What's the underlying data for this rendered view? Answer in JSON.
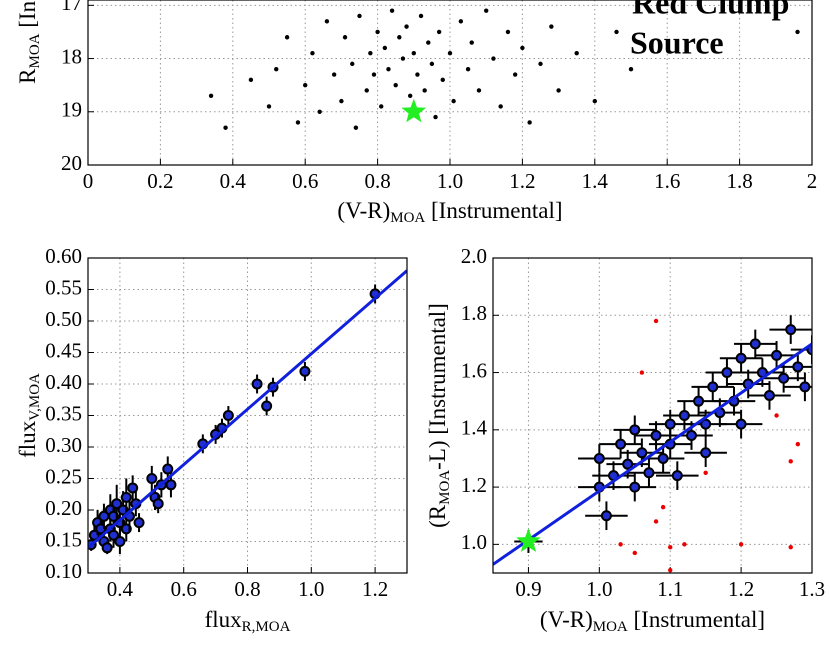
{
  "chart_data": [
    {
      "type": "scatter",
      "xlabel": [
        "(V-R)",
        "MOA",
        " [Instrumental]"
      ],
      "ylabel": [
        "R",
        "MOA",
        " [Instrumental]"
      ],
      "xlim": [
        0,
        2
      ],
      "ylim": [
        16.9,
        20
      ],
      "y_inverted": true,
      "xticks": [
        0,
        0.2,
        0.4,
        0.6,
        0.8,
        {
          "value": 1,
          "label": "1.0"
        },
        1.2,
        1.4,
        1.6,
        1.8,
        2
      ],
      "yticks": [
        17,
        18,
        19,
        20
      ],
      "grid": true,
      "legend": [
        {
          "text": "Red Clump",
          "color": "#ee0000"
        },
        {
          "text": "Source",
          "color": "#22ee22"
        }
      ],
      "series": [
        {
          "marker": "dot",
          "color": "#000000",
          "x": [
            0.34,
            0.38,
            0.45,
            0.5,
            0.52,
            0.55,
            0.58,
            0.6,
            0.62,
            0.64,
            0.66,
            0.68,
            0.7,
            0.71,
            0.73,
            0.74,
            0.75,
            0.77,
            0.78,
            0.79,
            0.8,
            0.81,
            0.82,
            0.83,
            0.84,
            0.85,
            0.86,
            0.87,
            0.88,
            0.89,
            0.9,
            0.91,
            0.92,
            0.93,
            0.94,
            0.95,
            0.96,
            0.97,
            0.98,
            1.0,
            1.01,
            1.03,
            1.05,
            1.06,
            1.08,
            1.1,
            1.12,
            1.14,
            1.16,
            1.18,
            1.2,
            1.22,
            1.25,
            1.28,
            1.3,
            1.35,
            1.4,
            1.46,
            1.5,
            1.96
          ],
          "values": [
            18.7,
            19.3,
            18.4,
            18.9,
            18.2,
            17.6,
            19.2,
            18.5,
            17.9,
            19.0,
            17.3,
            18.3,
            18.8,
            17.6,
            18.1,
            19.3,
            17.2,
            18.6,
            17.9,
            18.3,
            17.5,
            18.9,
            17.8,
            18.2,
            17.1,
            18.5,
            17.6,
            18.0,
            17.4,
            18.7,
            17.9,
            18.3,
            17.2,
            18.6,
            17.7,
            18.1,
            19.1,
            17.5,
            18.4,
            17.9,
            18.8,
            17.3,
            18.2,
            17.7,
            18.6,
            17.1,
            18.0,
            18.9,
            17.5,
            18.3,
            17.8,
            19.2,
            18.1,
            17.4,
            18.6,
            17.9,
            18.8,
            17.5,
            18.2,
            17.5
          ]
        },
        {
          "marker": "star",
          "color": "#22ee22",
          "x": [
            0.9
          ],
          "values": [
            19.0
          ]
        }
      ]
    },
    {
      "type": "scatter",
      "xlabel": [
        "flux",
        "R,MOA"
      ],
      "ylabel": [
        "flux",
        "V,MOA"
      ],
      "xlim": [
        0.3,
        1.3
      ],
      "ylim": [
        0.1,
        0.6
      ],
      "xticks": [
        0.4,
        0.6,
        0.8,
        {
          "value": 1,
          "label": "1.0"
        },
        1.2
      ],
      "yticks": [
        {
          "value": 0.1,
          "label": "0.10"
        },
        0.15,
        {
          "value": 0.2,
          "label": "0.20"
        },
        0.25,
        {
          "value": 0.3,
          "label": "0.30"
        },
        0.35,
        {
          "value": 0.4,
          "label": "0.40"
        },
        0.45,
        {
          "value": 0.5,
          "label": "0.50"
        },
        0.55,
        {
          "value": 0.6,
          "label": "0.60"
        }
      ],
      "grid": true,
      "series": [
        {
          "marker": "errorbar",
          "color": "#2030d0",
          "x": [
            0.31,
            0.32,
            0.33,
            0.34,
            0.35,
            0.35,
            0.36,
            0.37,
            0.37,
            0.38,
            0.38,
            0.39,
            0.4,
            0.4,
            0.41,
            0.42,
            0.42,
            0.43,
            0.44,
            0.45,
            0.46,
            0.5,
            0.51,
            0.52,
            0.53,
            0.55,
            0.56,
            0.66,
            0.7,
            0.72,
            0.74,
            0.83,
            0.86,
            0.88,
            0.98,
            1.2
          ],
          "values": [
            0.145,
            0.16,
            0.18,
            0.17,
            0.19,
            0.15,
            0.14,
            0.2,
            0.17,
            0.16,
            0.19,
            0.21,
            0.18,
            0.15,
            0.2,
            0.22,
            0.17,
            0.19,
            0.235,
            0.21,
            0.18,
            0.25,
            0.22,
            0.21,
            0.24,
            0.265,
            0.24,
            0.305,
            0.32,
            0.33,
            0.35,
            0.4,
            0.365,
            0.395,
            0.42,
            0.543
          ],
          "yerr": [
            0.01,
            0.015,
            0.02,
            0.02,
            0.02,
            0.015,
            0.01,
            0.025,
            0.02,
            0.02,
            0.025,
            0.03,
            0.02,
            0.02,
            0.03,
            0.03,
            0.02,
            0.025,
            0.02,
            0.02,
            0.015,
            0.02,
            0.02,
            0.015,
            0.02,
            0.02,
            0.02,
            0.015,
            0.015,
            0.015,
            0.015,
            0.015,
            0.015,
            0.015,
            0.015,
            0.015
          ]
        },
        {
          "marker": "line",
          "color": "#1020dd",
          "x": [
            0.3,
            1.3
          ],
          "values": [
            0.14,
            0.58
          ]
        }
      ]
    },
    {
      "type": "scatter",
      "xlabel": [
        "(V-R)",
        "MOA",
        " [Instrumental]"
      ],
      "ylabel": [
        "(R",
        "MOA",
        "-L) [Instrumental]"
      ],
      "xlim": [
        0.85,
        1.3
      ],
      "ylim": [
        0.9,
        2.0
      ],
      "xticks": [
        0.9,
        {
          "value": 1,
          "label": "1.0"
        },
        1.1,
        1.2,
        1.3
      ],
      "yticks": [
        {
          "value": 1,
          "label": "1.0"
        },
        1.2,
        1.4,
        1.6,
        1.8,
        {
          "value": 2,
          "label": "2.0"
        }
      ],
      "grid": true,
      "series": [
        {
          "marker": "dot",
          "color": "#ee0000",
          "x": [
            1.08,
            1.06,
            1.03,
            1.05,
            1.1,
            1.12,
            1.1,
            1.2,
            1.27,
            1.27,
            1.08,
            1.09,
            1.15,
            1.25,
            1.28
          ],
          "values": [
            1.78,
            1.6,
            1.0,
            0.97,
            0.99,
            1.0,
            0.91,
            1.0,
            0.99,
            1.29,
            1.08,
            1.13,
            1.25,
            1.45,
            1.35
          ]
        },
        {
          "marker": "errorbar",
          "color": "#2030d0",
          "x": [
            1.0,
            1.0,
            1.01,
            1.02,
            1.03,
            1.04,
            1.05,
            1.05,
            1.06,
            1.07,
            1.08,
            1.09,
            1.1,
            1.1,
            1.11,
            1.12,
            1.13,
            1.14,
            1.15,
            1.15,
            1.16,
            1.17,
            1.18,
            1.19,
            1.2,
            1.2,
            1.21,
            1.22,
            1.23,
            1.24,
            1.25,
            1.26,
            1.27,
            1.28,
            1.29,
            1.3
          ],
          "values": [
            1.3,
            1.2,
            1.1,
            1.24,
            1.35,
            1.28,
            1.2,
            1.4,
            1.32,
            1.25,
            1.38,
            1.3,
            1.42,
            1.35,
            1.24,
            1.45,
            1.38,
            1.5,
            1.42,
            1.32,
            1.55,
            1.46,
            1.6,
            1.5,
            1.42,
            1.65,
            1.56,
            1.7,
            1.6,
            1.52,
            1.66,
            1.58,
            1.75,
            1.62,
            1.55,
            1.68
          ],
          "xerr": [
            0.03,
            0.03,
            0.03,
            0.03,
            0.03,
            0.03,
            0.03,
            0.03,
            0.03,
            0.03,
            0.03,
            0.03,
            0.03,
            0.03,
            0.03,
            0.03,
            0.03,
            0.03,
            0.03,
            0.03,
            0.03,
            0.03,
            0.03,
            0.03,
            0.03,
            0.03,
            0.03,
            0.03,
            0.03,
            0.03,
            0.03,
            0.03,
            0.03,
            0.03,
            0.03,
            0.03
          ],
          "yerr": [
            0.05,
            0.05,
            0.05,
            0.05,
            0.05,
            0.05,
            0.05,
            0.05,
            0.05,
            0.05,
            0.05,
            0.05,
            0.05,
            0.05,
            0.05,
            0.05,
            0.05,
            0.05,
            0.05,
            0.05,
            0.05,
            0.05,
            0.05,
            0.05,
            0.05,
            0.05,
            0.05,
            0.05,
            0.05,
            0.05,
            0.05,
            0.05,
            0.05,
            0.05,
            0.05,
            0.05
          ]
        },
        {
          "marker": "line",
          "color": "#1020dd",
          "x": [
            0.85,
            1.3
          ],
          "values": [
            0.93,
            1.7
          ]
        },
        {
          "marker": "star",
          "color": "#22ee22",
          "x": [
            0.9
          ],
          "values": [
            1.01
          ],
          "xerr": [
            0.02
          ],
          "yerr": [
            0.04
          ]
        }
      ]
    }
  ]
}
